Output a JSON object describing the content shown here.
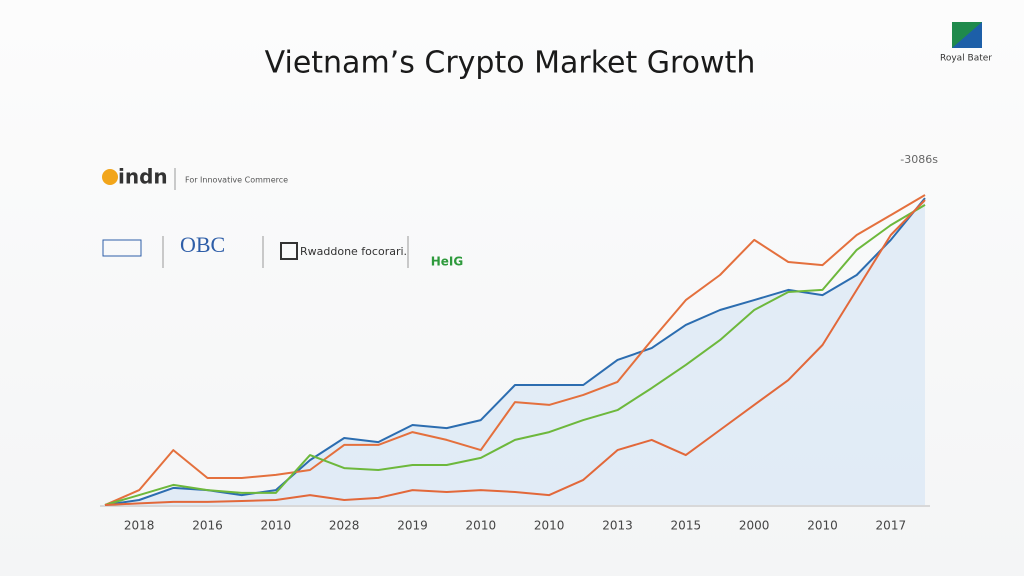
{
  "brand": {
    "name": "Royal Bater"
  },
  "logos": [
    {
      "text": "indn",
      "caption": "For Innovative Commerce"
    },
    {
      "text": "OBC"
    },
    {
      "text": "Rwaddone focorari."
    },
    {
      "text": "HeIG"
    }
  ],
  "chart_data": {
    "type": "line",
    "title": "Vietnam’s Crypto Market Growth",
    "annotation": "-3086s",
    "categories": [
      null,
      "2018",
      null,
      "2016",
      null,
      "2010",
      null,
      "2028",
      null,
      "2019",
      null,
      "2010",
      null,
      "2010",
      null,
      "2013",
      null,
      "2015",
      null,
      "2000",
      null,
      "2010",
      null,
      "2017",
      null
    ],
    "ylim": [
      0,
      100
    ],
    "series": [
      {
        "color": "#2c6db0",
        "area": true,
        "values": [
          0,
          1.6,
          5.5,
          4.8,
          3.2,
          4.8,
          14.5,
          21.6,
          20.3,
          25.8,
          24.8,
          27.4,
          38.7,
          38.7,
          38.7,
          46.8,
          50.6,
          58.1,
          62.9,
          66.1,
          69.4,
          67.7,
          74.2,
          85.5,
          99
        ]
      },
      {
        "color": "#e4703d",
        "values": [
          0,
          4.8,
          17.7,
          8.7,
          8.7,
          9.7,
          11.3,
          19.4,
          19.4,
          23.5,
          21,
          17.7,
          33.2,
          32.3,
          35.5,
          39.7,
          53.2,
          66.1,
          74.2,
          85.5,
          78.4,
          77.4,
          87.1,
          93.5,
          100
        ]
      },
      {
        "color": "#6db83c",
        "values": [
          0,
          3.2,
          6.5,
          4.8,
          3.9,
          3.9,
          16.1,
          11.9,
          11.3,
          12.9,
          12.9,
          15.2,
          21,
          23.5,
          27.4,
          30.6,
          37.7,
          45.2,
          53.2,
          62.9,
          68.7,
          69.4,
          82.3,
          90.3,
          96.8
        ]
      },
      {
        "color": "#e2683a",
        "values": [
          0,
          0.5,
          1,
          1,
          1.3,
          1.6,
          3.2,
          1.6,
          2.3,
          4.8,
          4.2,
          4.8,
          4.2,
          3.2,
          8.1,
          17.7,
          21,
          16.1,
          24.2,
          32.3,
          40.3,
          51.6,
          69.4,
          87.1,
          98.4
        ]
      }
    ]
  }
}
